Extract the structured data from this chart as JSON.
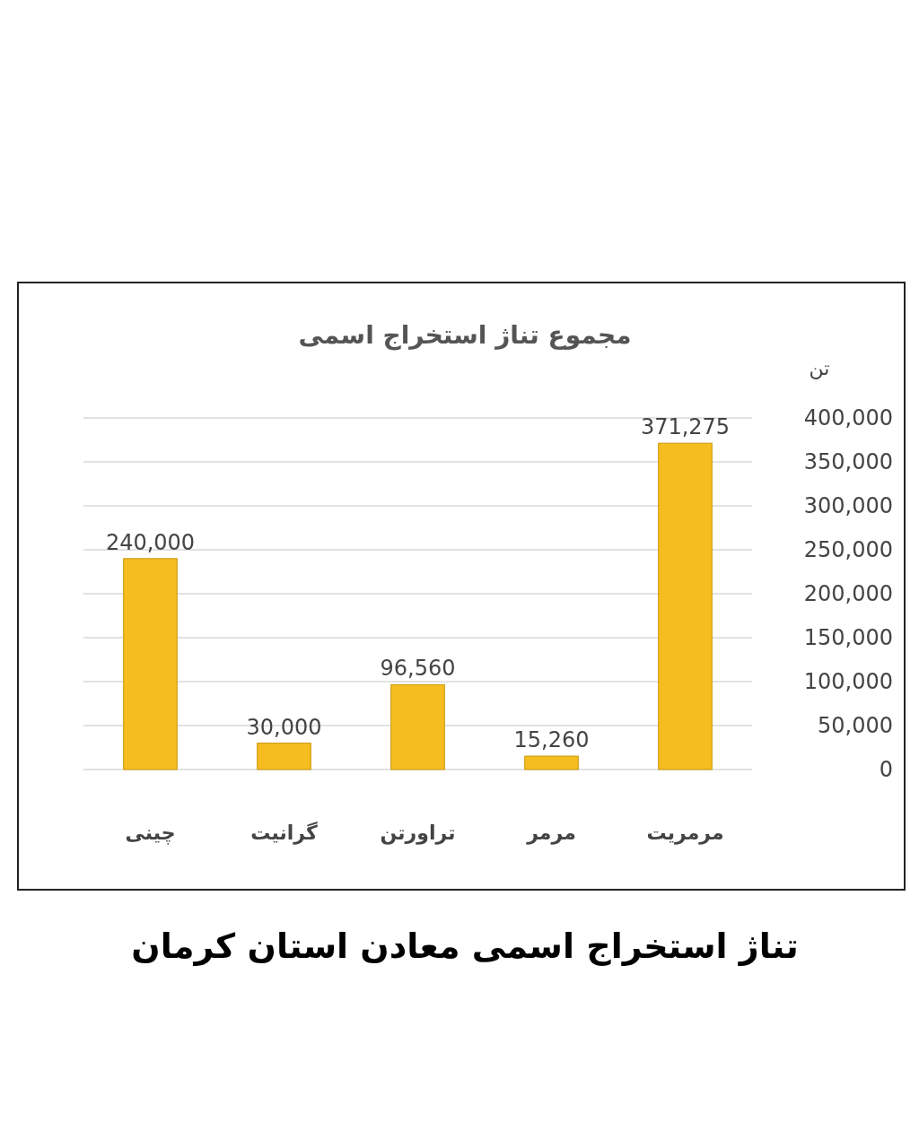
{
  "chart_data": {
    "type": "bar",
    "title": "مجموع تناژ استخراج اسمی",
    "ylabel": "تن",
    "categories": [
      "چینی",
      "گرانیت",
      "تراورتن",
      "مرمر",
      "مرمریت"
    ],
    "values": [
      240000,
      30000,
      96560,
      15260,
      371275
    ],
    "value_labels": [
      "240,000",
      "30,000",
      "96,560",
      "15,260",
      "371,275"
    ],
    "color": "#f5bd1f",
    "ylim": [
      0,
      400000
    ],
    "yticks": [
      {
        "value": 0,
        "label": "0"
      },
      {
        "value": 50000,
        "label": "50,000"
      },
      {
        "value": 100000,
        "label": "100,000"
      },
      {
        "value": 150000,
        "label": "150,000"
      },
      {
        "value": 200000,
        "label": "200,000"
      },
      {
        "value": 250000,
        "label": "250,000"
      },
      {
        "value": 300000,
        "label": "300,000"
      },
      {
        "value": 350000,
        "label": "350,000"
      },
      {
        "value": 400000,
        "label": "400,000"
      }
    ],
    "grid": "y",
    "annotations": [
      "تناژ استخراج اسمی معادن استان کرمان"
    ]
  }
}
